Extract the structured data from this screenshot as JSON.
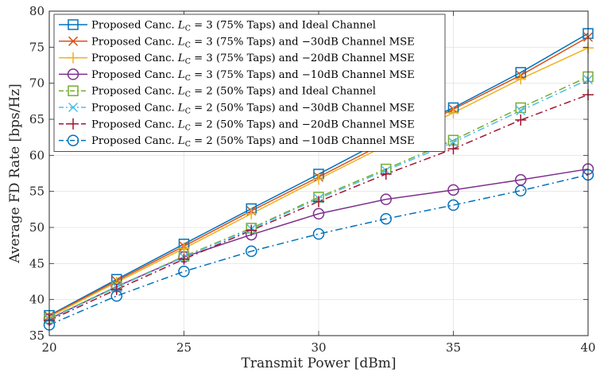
{
  "chart_data": {
    "type": "line",
    "title": "",
    "xlabel": "Transmit Power [dBm]",
    "ylabel": "Average FD Rate [bps/Hz]",
    "xlim": [
      20,
      40
    ],
    "ylim": [
      35,
      80
    ],
    "xticks": [
      20,
      25,
      30,
      35,
      40
    ],
    "yticks": [
      35,
      40,
      45,
      50,
      55,
      60,
      65,
      70,
      75,
      80
    ],
    "grid": true,
    "legend_position": "top-left",
    "x": [
      20,
      22.5,
      25,
      27.5,
      30,
      32.5,
      35,
      37.5,
      40
    ],
    "series": [
      {
        "name": "Proposed Canc. L_C = 3 (75% Taps) and Ideal Channel",
        "legend": {
          "pre": "Proposed Canc. ",
          "var": "L",
          "sub": "C",
          "post": " = 3 (75% Taps) and Ideal Channel"
        },
        "values": [
          37.8,
          42.8,
          47.7,
          52.6,
          57.4,
          62.3,
          66.6,
          71.5,
          76.9
        ],
        "color": "#0072BD",
        "marker": "square",
        "dash": "solid"
      },
      {
        "name": "Proposed Canc. L_C = 3 (75% Taps) and −30dB Channel MSE",
        "legend": {
          "pre": "Proposed Canc. ",
          "var": "L",
          "sub": "C",
          "post": " = 3 (75% Taps) and −30dB Channel MSE"
        },
        "values": [
          37.7,
          42.6,
          47.4,
          52.3,
          57.0,
          61.8,
          66.4,
          71.1,
          76.4
        ],
        "color": "#D95319",
        "marker": "x",
        "dash": "solid"
      },
      {
        "name": "Proposed Canc. L_C = 3 (75% Taps) and −20dB Channel MSE",
        "legend": {
          "pre": "Proposed Canc. ",
          "var": "L",
          "sub": "C",
          "post": " = 3 (75% Taps) and −20dB Channel MSE"
        },
        "values": [
          37.6,
          42.4,
          47.1,
          51.9,
          56.7,
          61.4,
          65.9,
          70.6,
          74.9
        ],
        "color": "#EDB120",
        "marker": "plus",
        "dash": "solid"
      },
      {
        "name": "Proposed Canc. L_C = 3 (75% Taps) and −10dB Channel MSE",
        "legend": {
          "pre": "Proposed Canc. ",
          "var": "L",
          "sub": "C",
          "post": " = 3 (75% Taps) and −10dB Channel MSE"
        },
        "values": [
          37.3,
          41.8,
          45.9,
          49.0,
          51.9,
          53.9,
          55.2,
          56.6,
          58.1
        ],
        "color": "#7E2F8E",
        "marker": "circle",
        "dash": "solid"
      },
      {
        "name": "Proposed Canc. L_C = 2 (50% Taps) and Ideal Channel",
        "legend": {
          "pre": "Proposed Canc. ",
          "var": "L",
          "sub": "C",
          "post": " = 2 (50% Taps) and Ideal Channel"
        },
        "values": [
          37.4,
          41.8,
          46.0,
          49.9,
          54.2,
          58.1,
          62.1,
          66.6,
          70.9
        ],
        "color": "#77AC30",
        "marker": "square",
        "dash": "dashdot"
      },
      {
        "name": "Proposed Canc. L_C = 2 (50% Taps) and −30dB Channel MSE",
        "legend": {
          "pre": "Proposed Canc. ",
          "var": "L",
          "sub": "C",
          "post": " = 2 (50% Taps) and −30dB Channel MSE"
        },
        "values": [
          37.3,
          41.7,
          45.9,
          49.8,
          54.0,
          57.9,
          61.8,
          66.2,
          70.5
        ],
        "color": "#4DBEEE",
        "marker": "x",
        "dash": "dashdot"
      },
      {
        "name": "Proposed Canc. L_C = 2 (50% Taps) and −20dB Channel MSE",
        "legend": {
          "pre": "Proposed Canc. ",
          "var": "L",
          "sub": "C",
          "post": " = 2 (50% Taps) and −20dB Channel MSE"
        },
        "values": [
          37.1,
          41.4,
          45.6,
          49.6,
          53.6,
          57.4,
          60.9,
          64.9,
          68.4
        ],
        "color": "#A2142F",
        "marker": "plus",
        "dash": "dashdot"
      },
      {
        "name": "Proposed Canc. L_C = 2 (50% Taps) and −10dB Channel MSE",
        "legend": {
          "pre": "Proposed Canc. ",
          "var": "L",
          "sub": "C",
          "post": " = 2 (50% Taps) and −10dB Channel MSE"
        },
        "values": [
          36.5,
          40.5,
          43.9,
          46.7,
          49.1,
          51.2,
          53.1,
          55.1,
          57.3
        ],
        "color": "#0072BD",
        "marker": "circle",
        "dash": "dashdot"
      }
    ]
  }
}
